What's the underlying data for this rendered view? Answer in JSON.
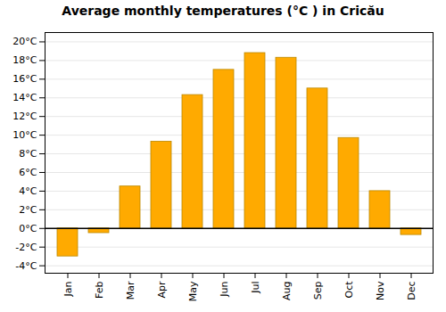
{
  "chart_data": {
    "type": "bar",
    "title": "Average monthly temperatures (°C ) in Cricău",
    "categories": [
      "Jan",
      "Feb",
      "Mar",
      "Apr",
      "May",
      "Jun",
      "Jul",
      "Aug",
      "Sep",
      "Oct",
      "Nov",
      "Dec"
    ],
    "values": [
      -3.0,
      -0.5,
      4.5,
      9.3,
      14.3,
      17.0,
      18.8,
      18.3,
      15.0,
      9.7,
      4.0,
      -0.7
    ],
    "color": "#FFAA00",
    "ylim": [
      -4.8,
      21.0
    ],
    "yticks": [
      {
        "value": -4,
        "label": "-4°C"
      },
      {
        "value": -2,
        "label": "-2°C"
      },
      {
        "value": 0,
        "label": "0°C"
      },
      {
        "value": 2,
        "label": "2°C"
      },
      {
        "value": 4,
        "label": "4°C"
      },
      {
        "value": 6,
        "label": "6°C"
      },
      {
        "value": 8,
        "label": "8°C"
      },
      {
        "value": 10,
        "label": "10°C"
      },
      {
        "value": 12,
        "label": "12°C"
      },
      {
        "value": 14,
        "label": "14°C"
      },
      {
        "value": 16,
        "label": "16°C"
      },
      {
        "value": 18,
        "label": "18°C"
      },
      {
        "value": 20,
        "label": "20°C"
      }
    ],
    "grid": true
  }
}
